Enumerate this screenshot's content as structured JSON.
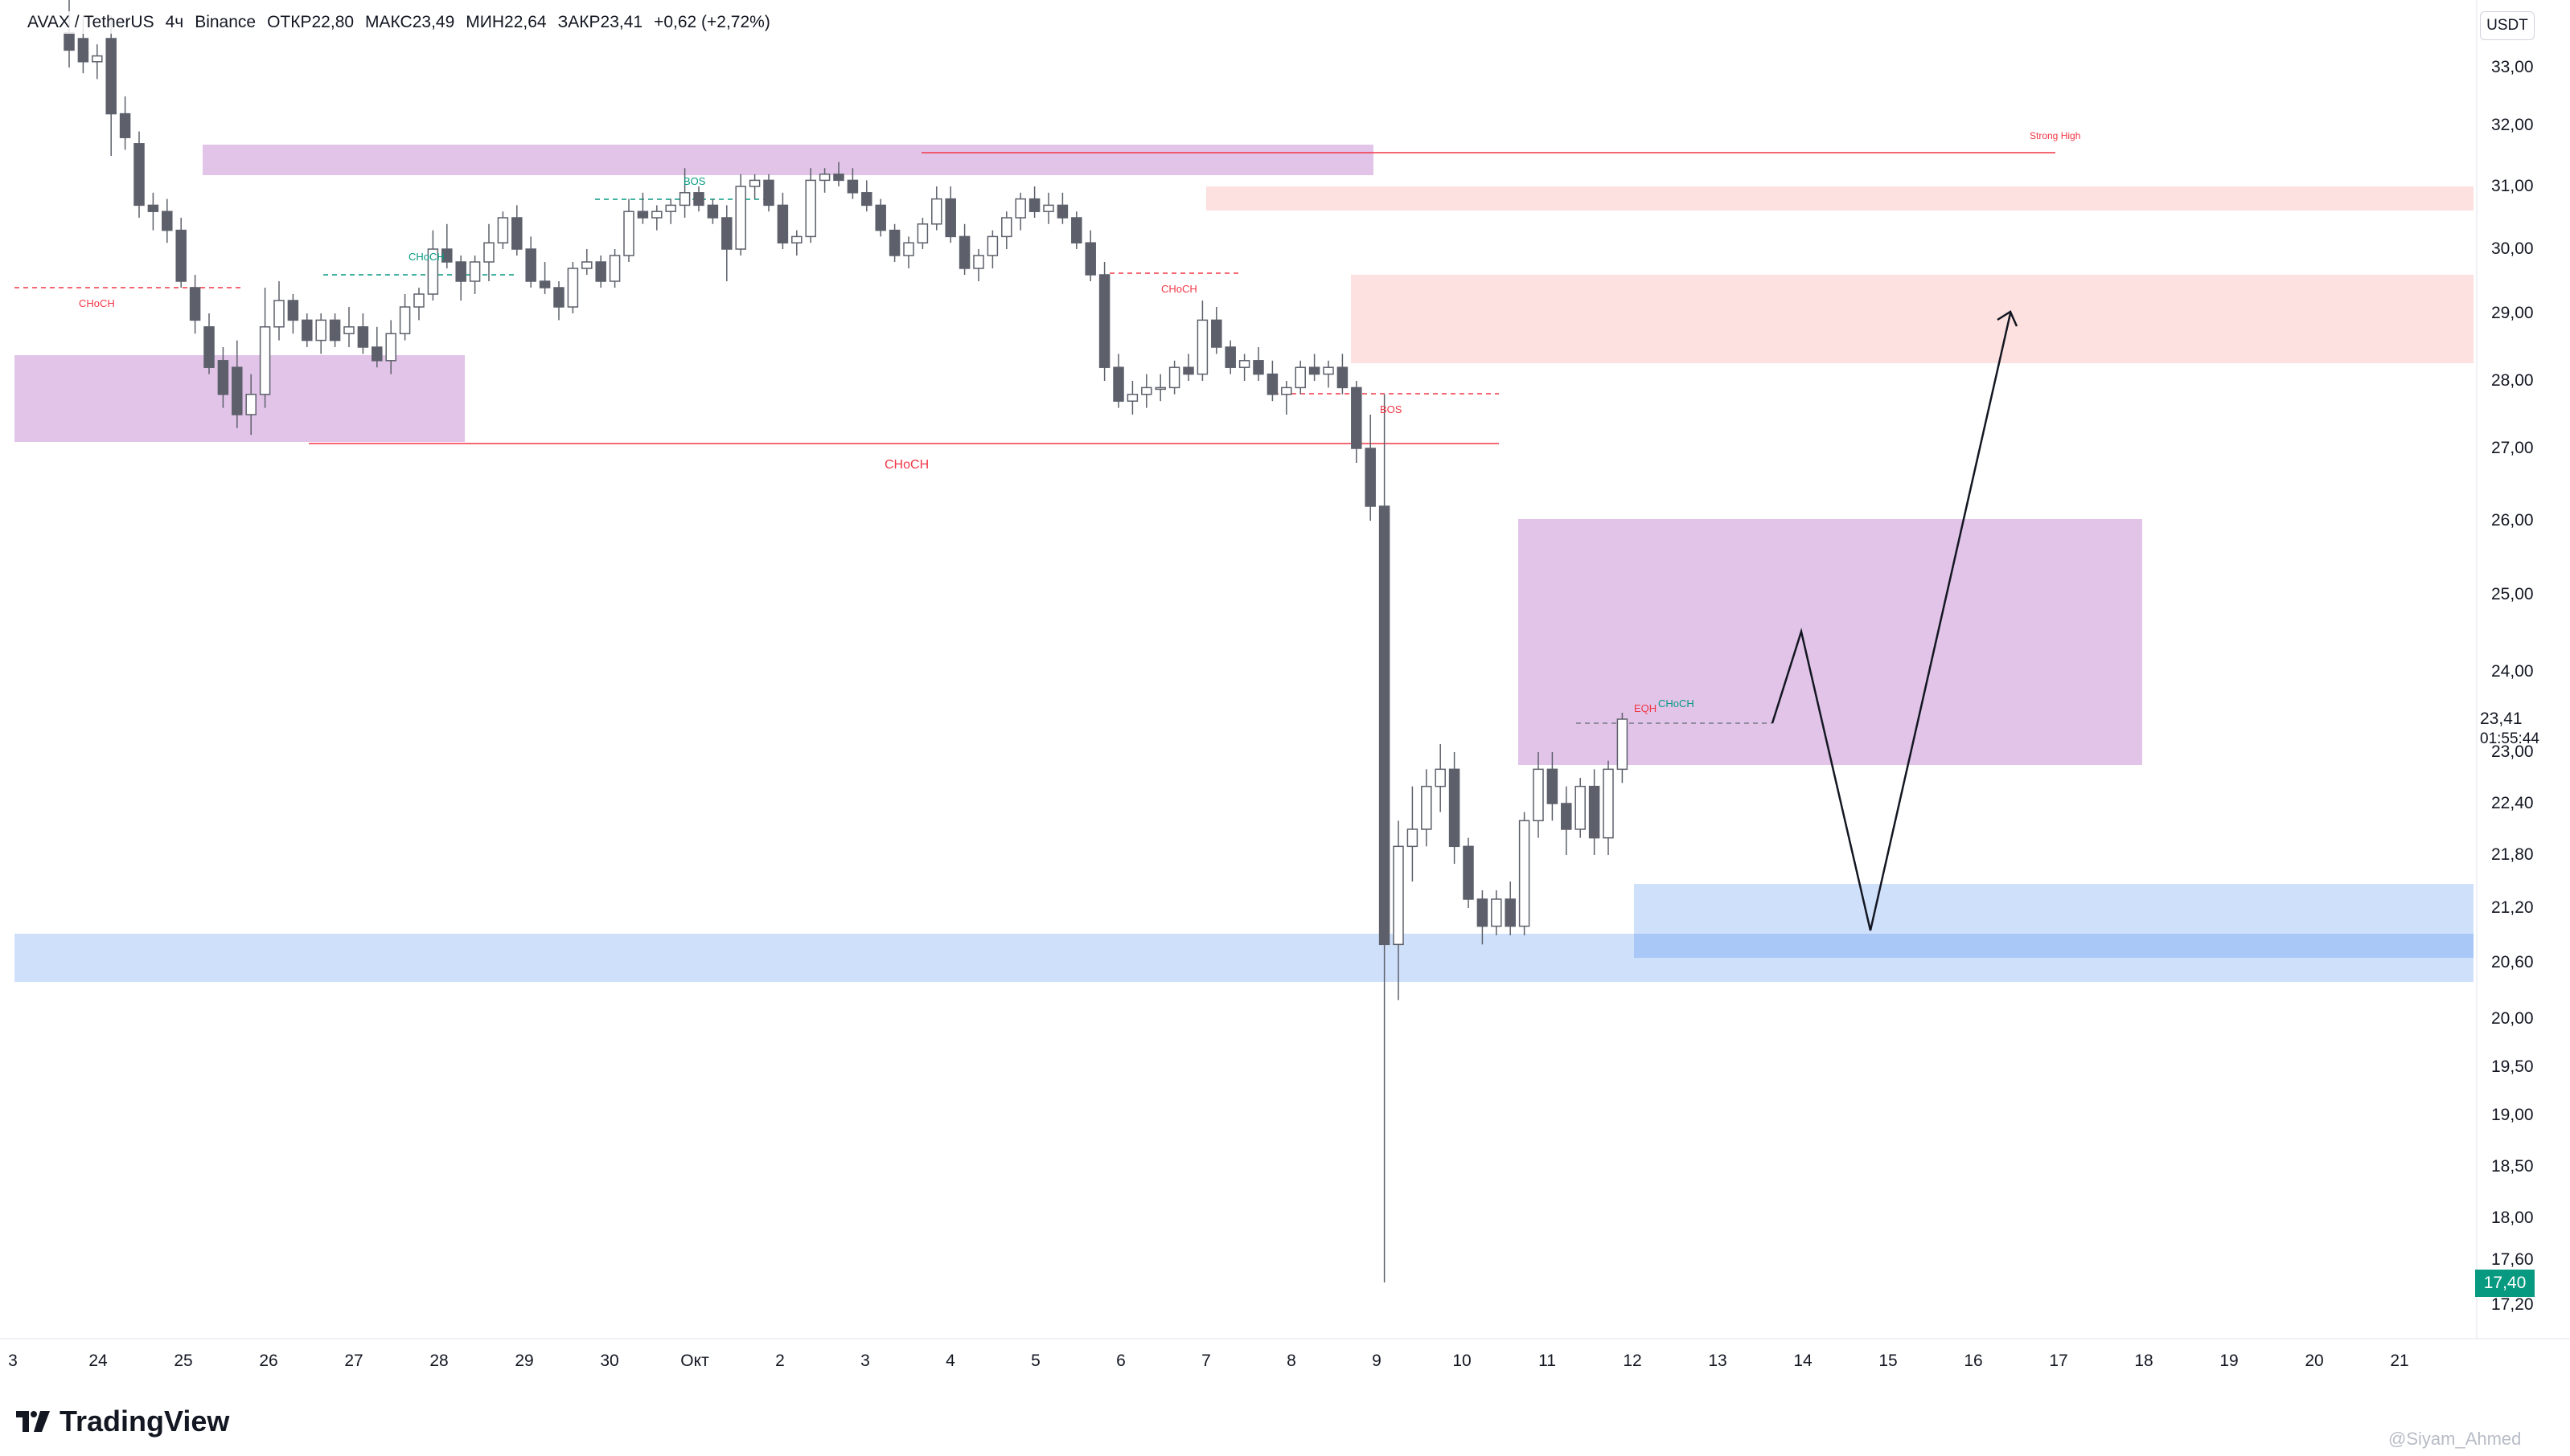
{
  "header": {
    "symbol": "AVAX / TetherUS",
    "interval": "4ч",
    "exchange": "Binance",
    "open": "ОТКР22,80",
    "high": "МАКС23,49",
    "low": "МИН22,64",
    "close": "ЗАКР23,41",
    "change": "+0,62 (+2,72%)"
  },
  "price_axis": {
    "currency": "USDT",
    "labels": [
      "33,00",
      "32,00",
      "31,00",
      "30,00",
      "29,00",
      "28,00",
      "27,00",
      "26,00",
      "25,00",
      "24,00",
      "23,00",
      "22,40",
      "21,80",
      "21,20",
      "20,60",
      "20,00",
      "19,50",
      "19,00",
      "18,50",
      "18,00",
      "17,60",
      "17,20"
    ],
    "current_price": "23,41",
    "countdown": "01:55:44",
    "low_marker": "17,40"
  },
  "time_axis": {
    "labels": [
      "3",
      "24",
      "25",
      "26",
      "27",
      "28",
      "29",
      "30",
      "Окт",
      "2",
      "3",
      "4",
      "5",
      "6",
      "7",
      "8",
      "9",
      "10",
      "11",
      "12",
      "13",
      "14",
      "15",
      "16",
      "17",
      "18",
      "19",
      "20",
      "21"
    ]
  },
  "annotations": {
    "choch_1": "CHoCH",
    "choch_2": "CHoCH",
    "bos_1": "BOS",
    "choch_3": "CHoCH",
    "bos_2": "BOS",
    "choch_big": "CHoCH",
    "strong_high": "Strong High",
    "eqh": "EQH",
    "choch_4": "CHoCH"
  },
  "branding": {
    "logo_text": "TradingView",
    "watermark": "@Siyam_Ahmed"
  },
  "colors": {
    "up_candle": "#ffffff",
    "down_candle": "#5d606b",
    "candle_outline": "#5d606b",
    "purple_zone": "#e1c4e8",
    "pink_zone": "#fde0e0",
    "blue_zone": "#cfe0fb",
    "blue_zone_dark": "#a9c8f7",
    "red_line": "#f23645",
    "green_line": "#089981",
    "low_tag": "#089981"
  },
  "chart_data": {
    "type": "candlestick",
    "title": "AVAX / TetherUS · 4ч · Binance",
    "ylabel": "USDT",
    "ylim": [
      17.0,
      33.5
    ],
    "ohlc": [
      {
        "o": 33.6,
        "h": 34.2,
        "l": 33.0,
        "c": 33.3
      },
      {
        "o": 33.5,
        "h": 33.9,
        "l": 32.9,
        "c": 33.1
      },
      {
        "o": 33.1,
        "h": 33.4,
        "l": 32.8,
        "c": 33.2
      },
      {
        "o": 33.5,
        "h": 33.9,
        "l": 31.5,
        "c": 32.2
      },
      {
        "o": 32.2,
        "h": 32.5,
        "l": 31.6,
        "c": 31.8
      },
      {
        "o": 31.7,
        "h": 31.9,
        "l": 30.5,
        "c": 30.7
      },
      {
        "o": 30.7,
        "h": 30.9,
        "l": 30.3,
        "c": 30.6
      },
      {
        "o": 30.6,
        "h": 30.8,
        "l": 30.1,
        "c": 30.3
      },
      {
        "o": 30.3,
        "h": 30.5,
        "l": 29.4,
        "c": 29.5
      },
      {
        "o": 29.4,
        "h": 29.6,
        "l": 28.7,
        "c": 28.9
      },
      {
        "o": 28.8,
        "h": 29.0,
        "l": 28.1,
        "c": 28.2
      },
      {
        "o": 28.3,
        "h": 28.5,
        "l": 27.6,
        "c": 27.8
      },
      {
        "o": 28.2,
        "h": 28.6,
        "l": 27.3,
        "c": 27.5
      },
      {
        "o": 27.5,
        "h": 28.1,
        "l": 27.2,
        "c": 27.8
      },
      {
        "o": 27.8,
        "h": 29.4,
        "l": 27.6,
        "c": 28.8
      },
      {
        "o": 28.8,
        "h": 29.5,
        "l": 28.6,
        "c": 29.2
      },
      {
        "o": 29.2,
        "h": 29.3,
        "l": 28.7,
        "c": 28.9
      },
      {
        "o": 28.9,
        "h": 29.0,
        "l": 28.5,
        "c": 28.6
      },
      {
        "o": 28.6,
        "h": 29.0,
        "l": 28.4,
        "c": 28.9
      },
      {
        "o": 28.9,
        "h": 29.0,
        "l": 28.5,
        "c": 28.6
      },
      {
        "o": 28.7,
        "h": 29.1,
        "l": 28.5,
        "c": 28.8
      },
      {
        "o": 28.8,
        "h": 29.0,
        "l": 28.4,
        "c": 28.5
      },
      {
        "o": 28.5,
        "h": 28.8,
        "l": 28.2,
        "c": 28.3
      },
      {
        "o": 28.3,
        "h": 28.9,
        "l": 28.1,
        "c": 28.7
      },
      {
        "o": 28.7,
        "h": 29.3,
        "l": 28.6,
        "c": 29.1
      },
      {
        "o": 29.1,
        "h": 29.4,
        "l": 28.9,
        "c": 29.3
      },
      {
        "o": 29.3,
        "h": 30.3,
        "l": 29.2,
        "c": 30.0
      },
      {
        "o": 30.0,
        "h": 30.4,
        "l": 29.7,
        "c": 29.8
      },
      {
        "o": 29.8,
        "h": 29.9,
        "l": 29.2,
        "c": 29.5
      },
      {
        "o": 29.5,
        "h": 29.9,
        "l": 29.3,
        "c": 29.8
      },
      {
        "o": 29.8,
        "h": 30.4,
        "l": 29.5,
        "c": 30.1
      },
      {
        "o": 30.1,
        "h": 30.6,
        "l": 30.0,
        "c": 30.5
      },
      {
        "o": 30.5,
        "h": 30.7,
        "l": 29.9,
        "c": 30.0
      },
      {
        "o": 30.0,
        "h": 30.2,
        "l": 29.4,
        "c": 29.5
      },
      {
        "o": 29.5,
        "h": 29.8,
        "l": 29.3,
        "c": 29.4
      },
      {
        "o": 29.4,
        "h": 29.5,
        "l": 28.9,
        "c": 29.1
      },
      {
        "o": 29.1,
        "h": 29.8,
        "l": 29.0,
        "c": 29.7
      },
      {
        "o": 29.7,
        "h": 30.0,
        "l": 29.6,
        "c": 29.8
      },
      {
        "o": 29.8,
        "h": 29.9,
        "l": 29.4,
        "c": 29.5
      },
      {
        "o": 29.5,
        "h": 30.0,
        "l": 29.4,
        "c": 29.9
      },
      {
        "o": 29.9,
        "h": 30.8,
        "l": 29.8,
        "c": 30.6
      },
      {
        "o": 30.6,
        "h": 30.9,
        "l": 30.4,
        "c": 30.5
      },
      {
        "o": 30.5,
        "h": 30.7,
        "l": 30.3,
        "c": 30.6
      },
      {
        "o": 30.6,
        "h": 30.8,
        "l": 30.4,
        "c": 30.7
      },
      {
        "o": 30.7,
        "h": 31.3,
        "l": 30.5,
        "c": 30.9
      },
      {
        "o": 30.9,
        "h": 31.0,
        "l": 30.6,
        "c": 30.7
      },
      {
        "o": 30.7,
        "h": 30.8,
        "l": 30.4,
        "c": 30.5
      },
      {
        "o": 30.5,
        "h": 30.7,
        "l": 29.5,
        "c": 30.0
      },
      {
        "o": 30.0,
        "h": 31.2,
        "l": 29.9,
        "c": 31.0
      },
      {
        "o": 31.0,
        "h": 31.2,
        "l": 30.8,
        "c": 31.1
      },
      {
        "o": 31.1,
        "h": 31.2,
        "l": 30.6,
        "c": 30.7
      },
      {
        "o": 30.7,
        "h": 30.9,
        "l": 30.0,
        "c": 30.1
      },
      {
        "o": 30.1,
        "h": 30.3,
        "l": 29.9,
        "c": 30.2
      },
      {
        "o": 30.2,
        "h": 31.3,
        "l": 30.1,
        "c": 31.1
      },
      {
        "o": 31.1,
        "h": 31.3,
        "l": 30.9,
        "c": 31.2
      },
      {
        "o": 31.2,
        "h": 31.4,
        "l": 31.0,
        "c": 31.1
      },
      {
        "o": 31.1,
        "h": 31.3,
        "l": 30.8,
        "c": 30.9
      },
      {
        "o": 30.9,
        "h": 31.1,
        "l": 30.6,
        "c": 30.7
      },
      {
        "o": 30.7,
        "h": 30.8,
        "l": 30.2,
        "c": 30.3
      },
      {
        "o": 30.3,
        "h": 30.4,
        "l": 29.8,
        "c": 29.9
      },
      {
        "o": 29.9,
        "h": 30.2,
        "l": 29.7,
        "c": 30.1
      },
      {
        "o": 30.1,
        "h": 30.5,
        "l": 30.0,
        "c": 30.4
      },
      {
        "o": 30.4,
        "h": 31.0,
        "l": 30.3,
        "c": 30.8
      },
      {
        "o": 30.8,
        "h": 31.0,
        "l": 30.1,
        "c": 30.2
      },
      {
        "o": 30.2,
        "h": 30.4,
        "l": 29.6,
        "c": 29.7
      },
      {
        "o": 29.7,
        "h": 30.0,
        "l": 29.5,
        "c": 29.9
      },
      {
        "o": 29.9,
        "h": 30.3,
        "l": 29.7,
        "c": 30.2
      },
      {
        "o": 30.2,
        "h": 30.6,
        "l": 30.0,
        "c": 30.5
      },
      {
        "o": 30.5,
        "h": 30.9,
        "l": 30.3,
        "c": 30.8
      },
      {
        "o": 30.8,
        "h": 31.0,
        "l": 30.5,
        "c": 30.6
      },
      {
        "o": 30.6,
        "h": 30.9,
        "l": 30.4,
        "c": 30.7
      },
      {
        "o": 30.7,
        "h": 30.9,
        "l": 30.4,
        "c": 30.5
      },
      {
        "o": 30.5,
        "h": 30.6,
        "l": 30.0,
        "c": 30.1
      },
      {
        "o": 30.1,
        "h": 30.3,
        "l": 29.5,
        "c": 29.6
      },
      {
        "o": 29.6,
        "h": 29.8,
        "l": 28.0,
        "c": 28.2
      },
      {
        "o": 28.2,
        "h": 28.4,
        "l": 27.6,
        "c": 27.7
      },
      {
        "o": 27.7,
        "h": 28.0,
        "l": 27.5,
        "c": 27.8
      },
      {
        "o": 27.8,
        "h": 28.1,
        "l": 27.6,
        "c": 27.9
      },
      {
        "o": 27.9,
        "h": 28.1,
        "l": 27.7,
        "c": 27.9
      },
      {
        "o": 27.9,
        "h": 28.3,
        "l": 27.8,
        "c": 28.2
      },
      {
        "o": 28.2,
        "h": 28.4,
        "l": 28.0,
        "c": 28.1
      },
      {
        "o": 28.1,
        "h": 29.2,
        "l": 28.0,
        "c": 28.9
      },
      {
        "o": 28.9,
        "h": 29.1,
        "l": 28.4,
        "c": 28.5
      },
      {
        "o": 28.5,
        "h": 28.6,
        "l": 28.1,
        "c": 28.2
      },
      {
        "o": 28.2,
        "h": 28.4,
        "l": 28.0,
        "c": 28.3
      },
      {
        "o": 28.3,
        "h": 28.5,
        "l": 28.0,
        "c": 28.1
      },
      {
        "o": 28.1,
        "h": 28.3,
        "l": 27.7,
        "c": 27.8
      },
      {
        "o": 27.8,
        "h": 28.0,
        "l": 27.5,
        "c": 27.9
      },
      {
        "o": 27.9,
        "h": 28.3,
        "l": 27.8,
        "c": 28.2
      },
      {
        "o": 28.2,
        "h": 28.4,
        "l": 28.0,
        "c": 28.1
      },
      {
        "o": 28.1,
        "h": 28.3,
        "l": 27.9,
        "c": 28.2
      },
      {
        "o": 28.2,
        "h": 28.4,
        "l": 27.8,
        "c": 27.9
      },
      {
        "o": 27.9,
        "h": 28.0,
        "l": 26.8,
        "c": 27.0
      },
      {
        "o": 27.0,
        "h": 27.5,
        "l": 26.0,
        "c": 26.2
      },
      {
        "o": 26.2,
        "h": 27.8,
        "l": 17.4,
        "c": 20.8
      },
      {
        "o": 20.8,
        "h": 22.2,
        "l": 20.2,
        "c": 21.9
      },
      {
        "o": 21.9,
        "h": 22.6,
        "l": 21.5,
        "c": 22.1
      },
      {
        "o": 22.1,
        "h": 22.8,
        "l": 21.9,
        "c": 22.6
      },
      {
        "o": 22.6,
        "h": 23.1,
        "l": 22.3,
        "c": 22.8
      },
      {
        "o": 22.8,
        "h": 23.0,
        "l": 21.7,
        "c": 21.9
      },
      {
        "o": 21.9,
        "h": 22.0,
        "l": 21.2,
        "c": 21.3
      },
      {
        "o": 21.3,
        "h": 21.4,
        "l": 20.8,
        "c": 21.0
      },
      {
        "o": 21.0,
        "h": 21.4,
        "l": 20.9,
        "c": 21.3
      },
      {
        "o": 21.3,
        "h": 21.5,
        "l": 20.9,
        "c": 21.0
      },
      {
        "o": 21.0,
        "h": 22.3,
        "l": 20.9,
        "c": 22.2
      },
      {
        "o": 22.2,
        "h": 23.0,
        "l": 22.0,
        "c": 22.8
      },
      {
        "o": 22.8,
        "h": 23.0,
        "l": 22.2,
        "c": 22.4
      },
      {
        "o": 22.4,
        "h": 22.6,
        "l": 21.8,
        "c": 22.1
      },
      {
        "o": 22.1,
        "h": 22.7,
        "l": 22.0,
        "c": 22.6
      },
      {
        "o": 22.6,
        "h": 22.8,
        "l": 21.8,
        "c": 22.0
      },
      {
        "o": 22.0,
        "h": 22.9,
        "l": 21.8,
        "c": 22.8
      },
      {
        "o": 22.8,
        "h": 23.49,
        "l": 22.64,
        "c": 23.41
      }
    ]
  }
}
